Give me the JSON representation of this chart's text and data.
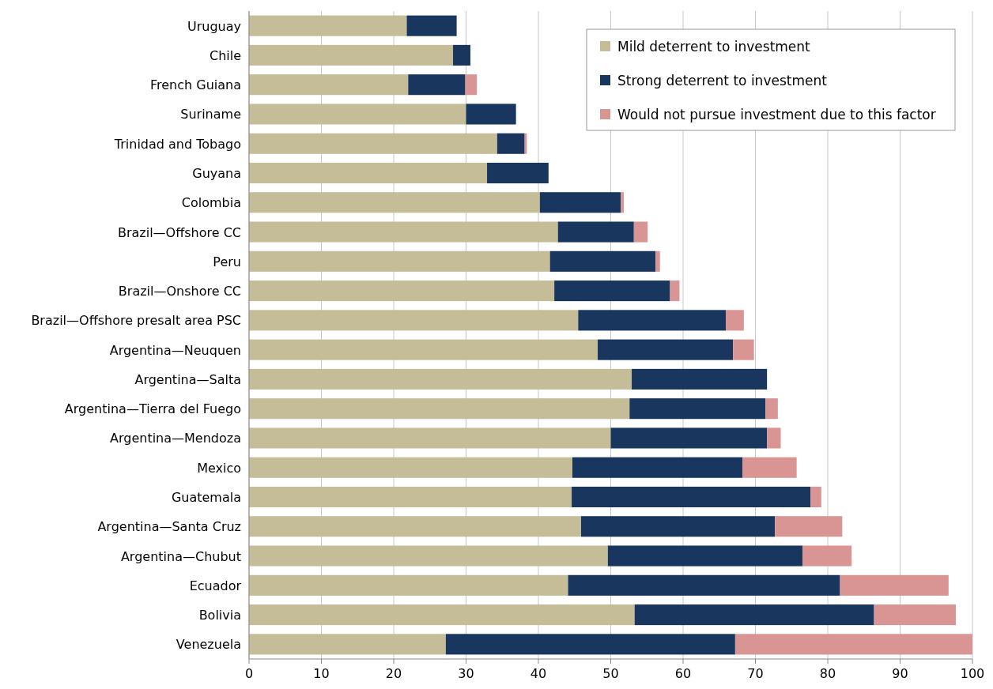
{
  "chart_data": {
    "type": "bar",
    "orientation": "horizontal",
    "stacked": true,
    "categories": [
      "Uruguay",
      "Chile",
      "French Guiana",
      "Suriname",
      "Trinidad and Tobago",
      "Guyana",
      "Colombia",
      "Brazil—Offshore CC",
      "Peru",
      "Brazil—Onshore CC",
      "Brazil—Offshore presalt area PSC",
      "Argentina—Neuquen",
      "Argentina—Salta",
      "Argentina—Tierra del Fuego",
      "Argentina—Mendoza",
      "Mexico",
      "Guatemala",
      "Argentina—Santa Cruz",
      "Argentina—Chubut",
      "Ecuador",
      "Bolivia",
      "Venezuela"
    ],
    "series": [
      {
        "name": "Mild deterrent to investment",
        "color": "#c5bd98",
        "values": [
          21.8,
          28.2,
          22.0,
          30.0,
          34.3,
          32.9,
          40.2,
          42.7,
          41.6,
          42.2,
          45.5,
          48.2,
          52.9,
          52.6,
          50.0,
          44.7,
          44.6,
          45.9,
          49.6,
          44.1,
          53.3,
          27.2
        ]
      },
      {
        "name": "Strong deterrent to investment",
        "color": "#18365e",
        "values": [
          6.9,
          2.4,
          7.9,
          6.9,
          3.8,
          8.5,
          11.2,
          10.5,
          14.6,
          16.0,
          20.4,
          18.7,
          18.7,
          18.8,
          21.6,
          23.5,
          33.0,
          26.8,
          26.9,
          37.6,
          33.1,
          40.0
        ]
      },
      {
        "name": "Would not pursue investment due to this factor",
        "color": "#d99594",
        "values": [
          0,
          0,
          1.6,
          0,
          0.3,
          0,
          0.4,
          1.9,
          0.6,
          1.3,
          2.5,
          2.9,
          0,
          1.7,
          1.9,
          7.5,
          1.5,
          9.3,
          6.8,
          15.0,
          11.3,
          32.8
        ]
      }
    ],
    "xlim": [
      0,
      100
    ],
    "xticks": [
      0,
      10,
      20,
      30,
      40,
      50,
      60,
      70,
      80,
      90,
      100
    ],
    "grid": "x",
    "legend": "top right"
  }
}
